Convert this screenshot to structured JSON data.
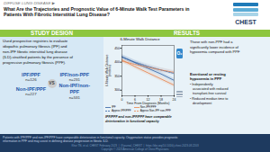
{
  "chart_data": {
    "type": "line",
    "title": "6-Minute Walk Distance",
    "xlabel": "Time From Diagnosis (Months)",
    "ylabel": "6-Minute Walk Distance\n(meters)",
    "x": [
      0,
      6,
      12,
      18,
      24
    ],
    "xlim": [
      0,
      24
    ],
    "xticks": [
      0,
      6,
      12,
      18,
      24
    ],
    "ylim": [
      280,
      460
    ],
    "yticks": [
      300,
      350,
      400,
      450
    ],
    "grid": false,
    "legend": "lower left",
    "series": [
      {
        "name": "IPF",
        "color": "#2e5fa3",
        "line_style": "solid",
        "values": [
          420,
          398,
          378,
          358,
          335
        ],
        "lower": [
          412,
          390,
          370,
          350,
          327
        ],
        "upper": [
          428,
          406,
          386,
          366,
          343
        ]
      },
      {
        "name": "Non-IPF/PPF",
        "color": "#e8824a",
        "line_style": "solid",
        "values": [
          408,
          384,
          362,
          340,
          318
        ],
        "lower": [
          400,
          376,
          354,
          332,
          310
        ],
        "upper": [
          416,
          392,
          370,
          348,
          326
        ]
      },
      {
        "name": "Approx IPF/PPF",
        "color": "#2e5fa3",
        "line_style": "dashed",
        "values": [
          418,
          400,
          385,
          372,
          360
        ],
        "lower": [
          410,
          392,
          377,
          364,
          352
        ],
        "upper": [
          426,
          408,
          393,
          380,
          368
        ]
      },
      {
        "name": "Approx Non-IPF non-PPF",
        "color": "#e8824a",
        "line_style": "dashed",
        "values": [
          404,
          392,
          382,
          372,
          364
        ],
        "lower": [
          396,
          384,
          374,
          364,
          356
        ],
        "upper": [
          412,
          400,
          390,
          380,
          372
        ]
      }
    ],
    "annotations": [
      "DIFFUSE LUNG DISEASE ▶",
      "What Are the Trajectories and Prognostic Value of 6-Minute Walk Test Parameters in",
      "Patients With Fibrotic Interstitial Lung Disease?",
      "CHEST",
      "STUDY DESIGN",
      "RESULTS",
      "Used prospective registries to evaluate\nidiopathic pulmonary fibrosis (IPF) and\nnon-IPF fibrotic interstitial lung disease\n(ILD)-stratified patients by the presence of\nprogressive pulmonary fibrosis (PPF).",
      "IPF/PPF",
      "n=126",
      "IPF/non-PPF",
      "n=231",
      "VS",
      "Non-IPF/PPF",
      "n=227",
      "Non-IPF/non-\nPPF",
      "n=531",
      "O₂",
      "Those with non-PPF had a\nsignificantly lower incidence of\nhypoxemia compared with PPF",
      "Exertional or resting\nhypoxemia in PPF",
      "• Independently\n   associated with reduced\n   transplant-free survival",
      "• Reduced median time to\n   development",
      "IPF/PPF and non-IPF/PPF have comparable\ndeterioration in functional capacity",
      "Patients with IPF/PPF and non-IPF/PPF have comparable deterioration in functional capacity. Oxygenation status provides prognostic\ninformation in PPF and may assist in defining disease progression in fibrotic ILD.",
      "Khur TN, et al. CHEST February 2023  |  @journal_CHEST  |  https://doi.org/10.1016/j.chest.2023.08.2203",
      "Copyright © 2023 American College of Chest Physicians"
    ]
  }
}
